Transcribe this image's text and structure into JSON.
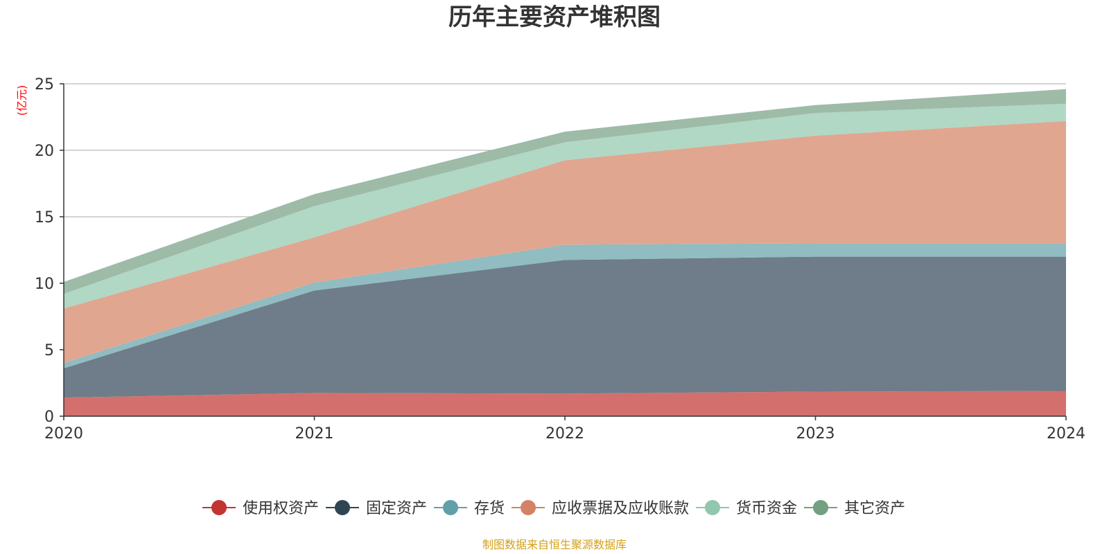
{
  "chart_data": {
    "type": "area",
    "stacked": true,
    "title": "历年主要资产堆积图",
    "unit": "(亿元)",
    "x": [
      "2020",
      "2021",
      "2022",
      "2023",
      "2024"
    ],
    "ylim": [
      0,
      25
    ],
    "yticks": [
      "0",
      "5",
      "10",
      "15",
      "20",
      "25"
    ],
    "grid": true,
    "legend_position": "bottom",
    "series": [
      {
        "name": "使用权资产",
        "values": [
          1.4,
          1.75,
          1.7,
          1.85,
          1.9
        ],
        "color": "#c23531",
        "fill": "#d3706d"
      },
      {
        "name": "固定资产",
        "values": [
          2.2,
          7.7,
          10.05,
          10.15,
          10.1
        ],
        "color": "#2f4554",
        "fill": "#6e7d89"
      },
      {
        "name": "存货",
        "values": [
          0.4,
          0.6,
          1.15,
          1.0,
          1.0
        ],
        "color": "#61a0a8",
        "fill": "#90bcc2"
      },
      {
        "name": "应收票据及应收账款",
        "values": [
          4.1,
          3.4,
          6.35,
          8.1,
          9.2
        ],
        "color": "#d48265",
        "fill": "#e1a68f"
      },
      {
        "name": "货币资金",
        "values": [
          1.1,
          2.35,
          1.35,
          1.7,
          1.3
        ],
        "color": "#91c7ae",
        "fill": "#b0d8c5"
      },
      {
        "name": "其它资产",
        "values": [
          0.9,
          0.9,
          0.8,
          0.6,
          1.1
        ],
        "color": "#749f83",
        "fill": "#9ebba8"
      }
    ],
    "source": "制图数据来自恒生聚源数据库",
    "source_color": "#d4a017",
    "unit_color": "#ff0000"
  }
}
